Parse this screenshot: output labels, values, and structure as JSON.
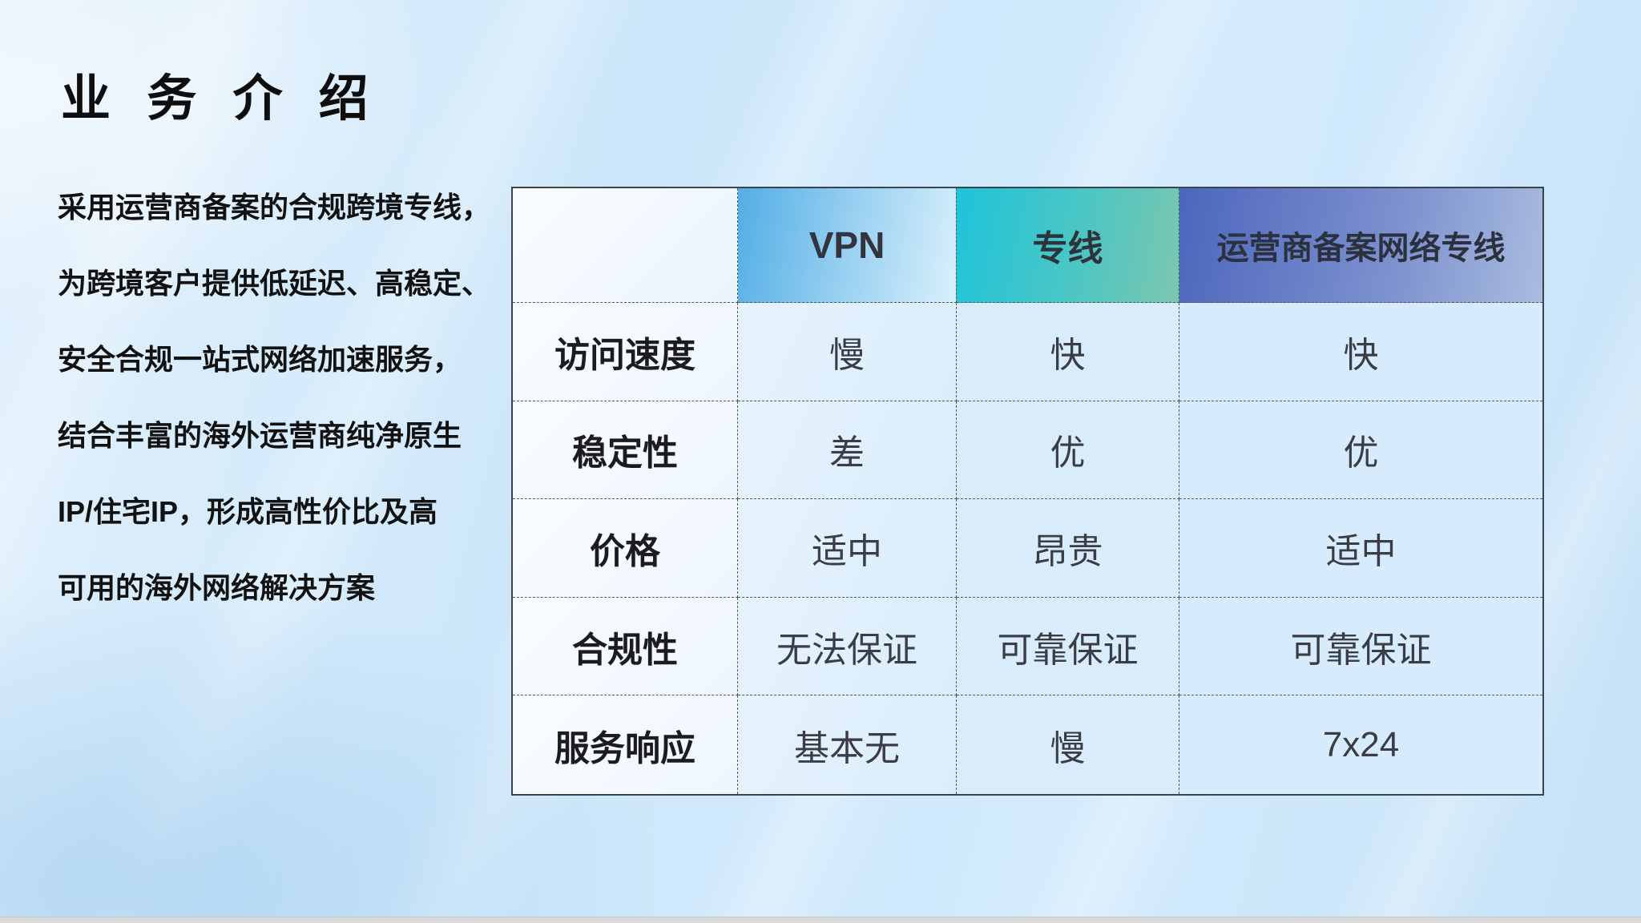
{
  "slide": {
    "title": "业 务 介 绍",
    "intro_lines": [
      "采用运营商备案的合规跨境专线，",
      "为跨境客户提供低延迟、高稳定、",
      "安全合规一站式网络加速服务，",
      "结合丰富的海外运营商纯净原生",
      "IP/住宅IP，形成高性价比及高",
      "可用的海外网络解决方案"
    ]
  },
  "comparison_table": {
    "columns": [
      "",
      "VPN",
      "专线",
      "运营商备案网络专线"
    ],
    "rows": [
      {
        "label": "访问速度",
        "values": [
          "慢",
          "快",
          "快"
        ]
      },
      {
        "label": "稳定性",
        "values": [
          "差",
          "优",
          "优"
        ]
      },
      {
        "label": "价格",
        "values": [
          "适中",
          "昂贵",
          "适中"
        ]
      },
      {
        "label": "合规性",
        "values": [
          "无法保证",
          "可靠保证",
          "可靠保证"
        ]
      },
      {
        "label": "服务响应",
        "values": [
          "基本无",
          "慢",
          "7x24"
        ]
      }
    ],
    "header_colors": {
      "vpn_gradient": [
        "#52aee5",
        "#d9f0fb"
      ],
      "dedicated_gradient": [
        "#1ec4da",
        "#7cc7ae"
      ],
      "carrier_gradient": [
        "#4d66bc",
        "#a9bcdf"
      ]
    },
    "background_color": "#cde7fa",
    "border_color": "#3c434c"
  }
}
